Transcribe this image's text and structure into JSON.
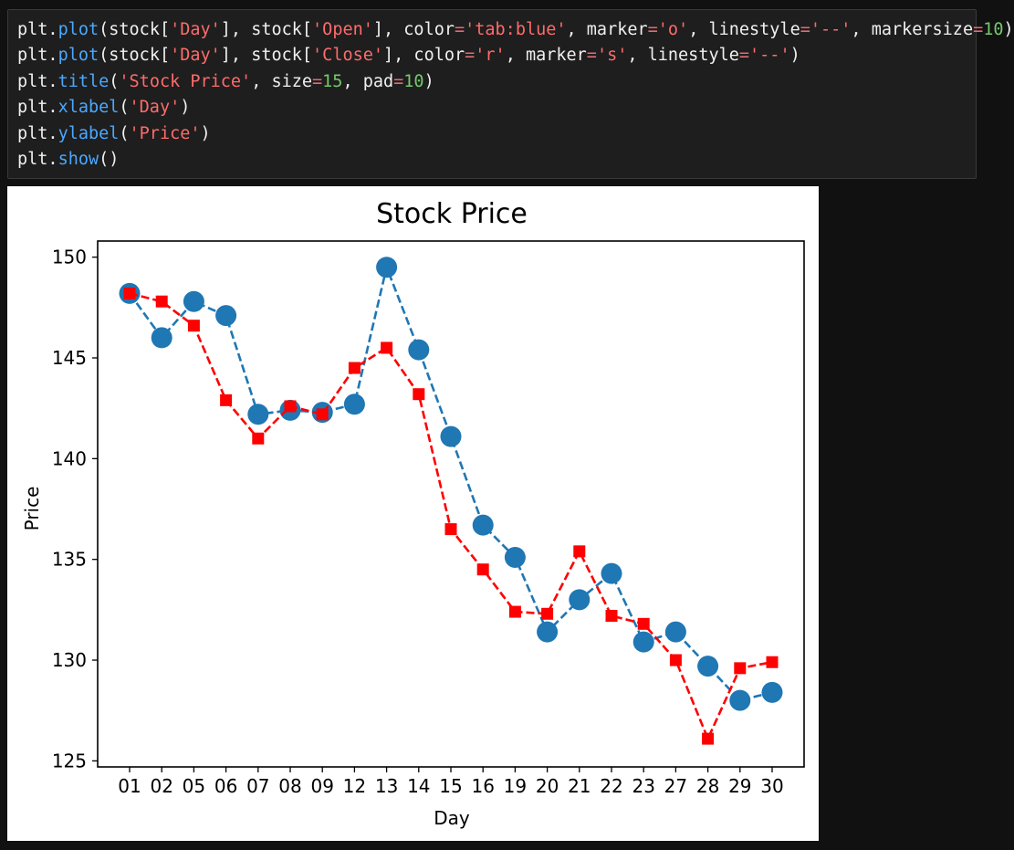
{
  "code": {
    "lines": [
      [
        [
          "plain",
          "plt."
        ],
        [
          "fn",
          "plot"
        ],
        [
          "plain",
          "(stock["
        ],
        [
          "str",
          "'Day'"
        ],
        [
          "plain",
          "], stock["
        ],
        [
          "str",
          "'Open'"
        ],
        [
          "plain",
          "], color"
        ],
        [
          "op",
          "="
        ],
        [
          "str",
          "'tab:blue'"
        ],
        [
          "plain",
          ", marker"
        ],
        [
          "op",
          "="
        ],
        [
          "str",
          "'o'"
        ],
        [
          "plain",
          ", linestyle"
        ],
        [
          "op",
          "="
        ],
        [
          "str",
          "'--'"
        ],
        [
          "plain",
          ", markersize"
        ],
        [
          "op",
          "="
        ],
        [
          "num",
          "10"
        ],
        [
          "plain",
          ")"
        ]
      ],
      [
        [
          "plain",
          "plt."
        ],
        [
          "fn",
          "plot"
        ],
        [
          "plain",
          "(stock["
        ],
        [
          "str",
          "'Day'"
        ],
        [
          "plain",
          "], stock["
        ],
        [
          "str",
          "'Close'"
        ],
        [
          "plain",
          "], color"
        ],
        [
          "op",
          "="
        ],
        [
          "str",
          "'r'"
        ],
        [
          "plain",
          ", marker"
        ],
        [
          "op",
          "="
        ],
        [
          "str",
          "'s'"
        ],
        [
          "plain",
          ", linestyle"
        ],
        [
          "op",
          "="
        ],
        [
          "str",
          "'--'"
        ],
        [
          "plain",
          ")"
        ]
      ],
      [
        [
          "plain",
          "plt."
        ],
        [
          "fn",
          "title"
        ],
        [
          "plain",
          "("
        ],
        [
          "str",
          "'Stock Price'"
        ],
        [
          "plain",
          ", size"
        ],
        [
          "op",
          "="
        ],
        [
          "num",
          "15"
        ],
        [
          "plain",
          ", pad"
        ],
        [
          "op",
          "="
        ],
        [
          "num",
          "10"
        ],
        [
          "plain",
          ")"
        ]
      ],
      [
        [
          "plain",
          "plt."
        ],
        [
          "fn",
          "xlabel"
        ],
        [
          "plain",
          "("
        ],
        [
          "str",
          "'Day'"
        ],
        [
          "plain",
          ")"
        ]
      ],
      [
        [
          "plain",
          "plt."
        ],
        [
          "fn",
          "ylabel"
        ],
        [
          "plain",
          "("
        ],
        [
          "str",
          "'Price'"
        ],
        [
          "plain",
          ")"
        ]
      ],
      [
        [
          "plain",
          "plt."
        ],
        [
          "fn",
          "show"
        ],
        [
          "plain",
          "()"
        ]
      ]
    ]
  },
  "chart_data": {
    "type": "line",
    "title": "Stock Price",
    "xlabel": "Day",
    "ylabel": "Price",
    "categories": [
      "01",
      "02",
      "05",
      "06",
      "07",
      "08",
      "09",
      "12",
      "13",
      "14",
      "15",
      "16",
      "19",
      "20",
      "21",
      "22",
      "23",
      "27",
      "28",
      "29",
      "30"
    ],
    "ylim": [
      124.7,
      150.8
    ],
    "yticks": [
      125,
      130,
      135,
      140,
      145,
      150
    ],
    "grid": false,
    "series": [
      {
        "name": "Open",
        "color": "#1f77b4",
        "marker": "circle",
        "linestyle": "dashed",
        "values": [
          148.2,
          146.0,
          147.8,
          147.1,
          142.2,
          142.4,
          142.3,
          142.7,
          149.5,
          145.4,
          141.1,
          136.7,
          135.1,
          131.4,
          133.0,
          134.3,
          130.9,
          131.4,
          129.7,
          128.0,
          128.4
        ]
      },
      {
        "name": "Close",
        "color": "#ff0000",
        "marker": "square",
        "linestyle": "dashed",
        "values": [
          148.2,
          147.8,
          146.6,
          142.9,
          141.0,
          142.6,
          142.2,
          144.5,
          145.5,
          143.2,
          136.5,
          134.5,
          132.4,
          132.3,
          135.4,
          132.2,
          131.8,
          130.0,
          126.1,
          129.6,
          129.9
        ]
      }
    ]
  }
}
